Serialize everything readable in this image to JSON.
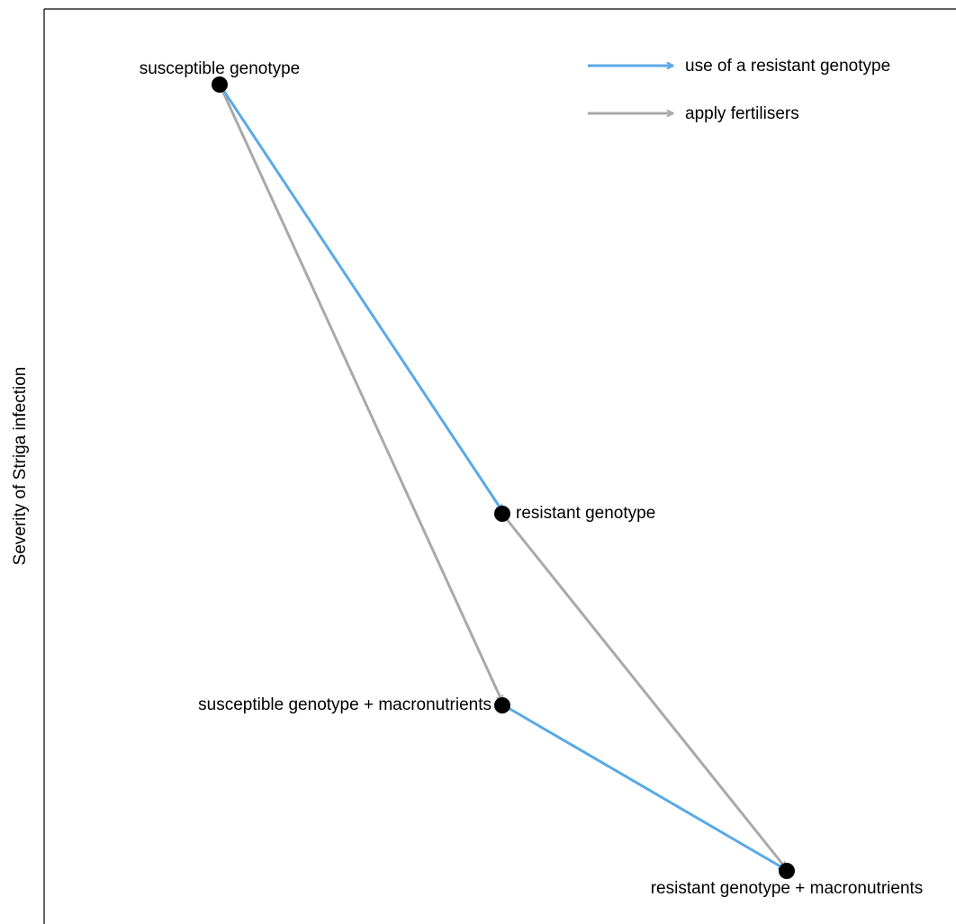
{
  "diagram": {
    "ylabel": "Severity of Striga infection",
    "colors": {
      "resistant_arrow": "#5aa9e6",
      "fertiliser_arrow": "#a9a9a9",
      "node": "#000000"
    },
    "nodes": {
      "sg": "susceptible genotype",
      "rg": "resistant genotype",
      "sgm": "susceptible genotype + macronutrients",
      "rgm": "resistant genotype + macronutrients"
    },
    "legend": {
      "resistant": "use of a resistant genotype",
      "fertiliser": "apply fertilisers"
    }
  }
}
